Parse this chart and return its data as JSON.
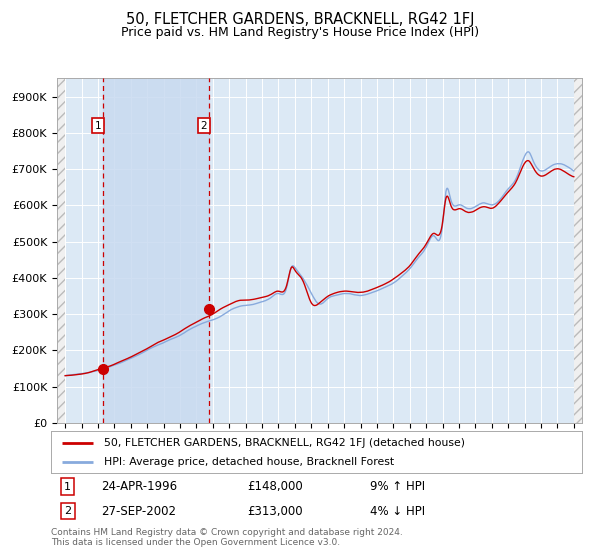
{
  "title": "50, FLETCHER GARDENS, BRACKNELL, RG42 1FJ",
  "subtitle": "Price paid vs. HM Land Registry's House Price Index (HPI)",
  "title_fontsize": 10.5,
  "subtitle_fontsize": 9,
  "ylim": [
    0,
    950000
  ],
  "yticks": [
    0,
    100000,
    200000,
    300000,
    400000,
    500000,
    600000,
    700000,
    800000,
    900000
  ],
  "ytick_labels": [
    "£0",
    "£100K",
    "£200K",
    "£300K",
    "£400K",
    "£500K",
    "£600K",
    "£700K",
    "£800K",
    "£900K"
  ],
  "background_color": "#ffffff",
  "plot_bg_color": "#dce9f5",
  "grid_color": "#ffffff",
  "red_line_color": "#cc0000",
  "blue_line_color": "#88aadd",
  "sale1_year": 1996.31,
  "sale1_price": 148000,
  "sale2_year": 2002.74,
  "sale2_price": 313000,
  "vline_color": "#cc0000",
  "shade_color": "#c8daf0",
  "legend_label_red": "50, FLETCHER GARDENS, BRACKNELL, RG42 1FJ (detached house)",
  "legend_label_blue": "HPI: Average price, detached house, Bracknell Forest",
  "table_row1": [
    "1",
    "24-APR-1996",
    "£148,000",
    "9% ↑ HPI"
  ],
  "table_row2": [
    "2",
    "27-SEP-2002",
    "£313,000",
    "4% ↓ HPI"
  ],
  "footer": "Contains HM Land Registry data © Crown copyright and database right 2024.\nThis data is licensed under the Open Government Licence v3.0.",
  "xlim_start": 1993.5,
  "xlim_end": 2025.5,
  "hpi_years": [
    1994.0,
    1994.5,
    1995.0,
    1995.5,
    1996.0,
    1996.5,
    1997.0,
    1997.5,
    1998.0,
    1998.5,
    1999.0,
    1999.5,
    2000.0,
    2000.5,
    2001.0,
    2001.5,
    2002.0,
    2002.5,
    2003.0,
    2003.5,
    2004.0,
    2004.5,
    2005.0,
    2005.5,
    2006.0,
    2006.5,
    2007.0,
    2007.5,
    2007.8,
    2008.0,
    2008.5,
    2009.0,
    2009.5,
    2010.0,
    2010.5,
    2011.0,
    2011.5,
    2012.0,
    2012.5,
    2013.0,
    2013.5,
    2014.0,
    2014.5,
    2015.0,
    2015.5,
    2016.0,
    2016.5,
    2017.0,
    2017.2,
    2017.5,
    2018.0,
    2018.5,
    2019.0,
    2019.5,
    2020.0,
    2020.5,
    2021.0,
    2021.5,
    2022.0,
    2022.3,
    2022.5,
    2023.0,
    2023.5,
    2024.0,
    2024.5,
    2025.0
  ],
  "hpi_blue": [
    130000,
    133000,
    136000,
    140000,
    145000,
    152000,
    160000,
    168000,
    178000,
    188000,
    200000,
    212000,
    222000,
    232000,
    242000,
    256000,
    268000,
    278000,
    285000,
    295000,
    310000,
    320000,
    325000,
    328000,
    335000,
    345000,
    358000,
    375000,
    432000,
    430000,
    400000,
    360000,
    330000,
    345000,
    355000,
    360000,
    358000,
    355000,
    360000,
    368000,
    378000,
    390000,
    408000,
    430000,
    460000,
    490000,
    520000,
    550000,
    640000,
    620000,
    605000,
    595000,
    600000,
    610000,
    605000,
    620000,
    650000,
    680000,
    740000,
    750000,
    730000,
    700000,
    710000,
    720000,
    715000,
    700000
  ],
  "hpi_red": [
    130000,
    132000,
    135000,
    140000,
    147000,
    153000,
    162000,
    172000,
    182000,
    193000,
    205000,
    218000,
    228000,
    238000,
    250000,
    264000,
    276000,
    288000,
    298000,
    313000,
    325000,
    335000,
    338000,
    340000,
    345000,
    352000,
    362000,
    378000,
    428000,
    420000,
    390000,
    330000,
    330000,
    348000,
    358000,
    362000,
    360000,
    358000,
    363000,
    372000,
    382000,
    395000,
    412000,
    432000,
    462000,
    492000,
    522000,
    552000,
    618000,
    600000,
    590000,
    580000,
    585000,
    595000,
    590000,
    608000,
    635000,
    665000,
    715000,
    720000,
    705000,
    680000,
    690000,
    700000,
    690000,
    678000
  ]
}
